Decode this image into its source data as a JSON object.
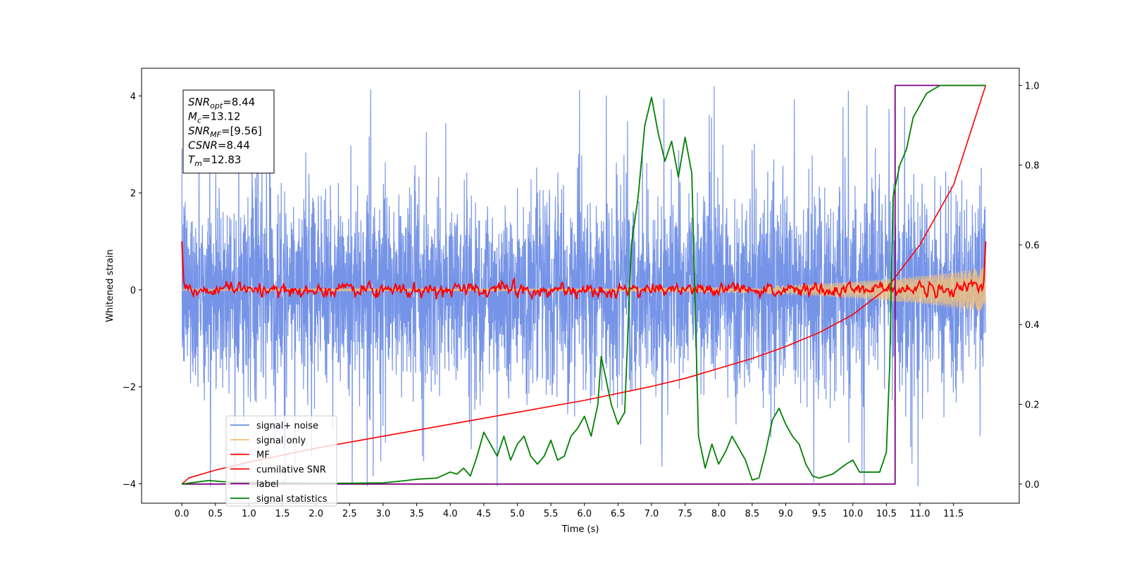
{
  "chart_data": {
    "type": "line",
    "xlabel": "Time (s)",
    "ylabel_left": "Whitened strain",
    "ylabel_right": "",
    "xlim": [
      -0.6,
      12.48
    ],
    "ylim_left": [
      -4.4,
      4.57
    ],
    "ylim_right": [
      -0.048,
      1.043
    ],
    "x_ticks": [
      "0.0",
      "0.5",
      "1.0",
      "1.5",
      "2.0",
      "2.5",
      "3.0",
      "3.5",
      "4.0",
      "4.5",
      "5.0",
      "5.5",
      "6.0",
      "6.5",
      "7.0",
      "7.5",
      "8.0",
      "8.5",
      "9.0",
      "9.5",
      "10.0",
      "10.5",
      "11.0",
      "11.5"
    ],
    "y_ticks_left": [
      -4,
      -2,
      0,
      2,
      4
    ],
    "y_ticks_right": [
      0.0,
      0.2,
      0.4,
      0.6,
      0.8,
      1.0
    ],
    "grid": false,
    "legend_placement": "lower-left",
    "annotation": {
      "lines": [
        {
          "main": "SNR",
          "sub": "opt",
          "rest": "=8.44"
        },
        {
          "main": "M",
          "sub": "c",
          "rest": "=13.12"
        },
        {
          "main": "SNR",
          "sub": "MF",
          "rest": "=[9.56]"
        },
        {
          "main": "CSNR",
          "sub": "",
          "rest": "=8.44"
        },
        {
          "main": "T",
          "sub": "m",
          "rest": "=12.83"
        }
      ]
    },
    "series": [
      {
        "name": "signal+ noise",
        "axis": "left",
        "color": "#6f8ee6",
        "description": "noisy whitened strain, roughly between -3 and 3 with spikes to about 4.2 and -4.0",
        "t_range": [
          0,
          11.98
        ]
      },
      {
        "name": "signal only",
        "axis": "left",
        "color": "#f5c27a",
        "description": "chirp growing to about ±0.45 at the end",
        "t_range": [
          0,
          11.98
        ]
      },
      {
        "name": "MF",
        "axis": "left",
        "color": "#ff0000",
        "description": "matched filter output, near 0, starts and ends at 1.0",
        "t_range": [
          0,
          11.98
        ]
      },
      {
        "name": "cumilative SNR",
        "axis": "right",
        "color": "#ff0000",
        "x": [
          0,
          0.1,
          0.5,
          1,
          2,
          3,
          4,
          5,
          6,
          7,
          7.5,
          8,
          8.5,
          9,
          9.5,
          10,
          10.5,
          11,
          11.5,
          11.98
        ],
        "y": [
          0.0,
          0.015,
          0.035,
          0.055,
          0.09,
          0.12,
          0.15,
          0.18,
          0.21,
          0.245,
          0.265,
          0.29,
          0.315,
          0.345,
          0.38,
          0.425,
          0.49,
          0.6,
          0.75,
          1.0
        ]
      },
      {
        "name": "label",
        "axis": "right",
        "color": "#800080",
        "x": [
          0,
          10.63,
          10.63,
          11.98
        ],
        "y": [
          0,
          0,
          1,
          1
        ]
      },
      {
        "name": "signal statistics",
        "axis": "right",
        "color": "#008000",
        "x": [
          0,
          0.4,
          0.6,
          1,
          1.5,
          2,
          2.5,
          3,
          3.3,
          3.5,
          3.8,
          4,
          4.1,
          4.2,
          4.3,
          4.4,
          4.5,
          4.6,
          4.7,
          4.8,
          4.9,
          5,
          5.1,
          5.2,
          5.3,
          5.4,
          5.5,
          5.6,
          5.7,
          5.8,
          5.9,
          6,
          6.1,
          6.2,
          6.25,
          6.3,
          6.4,
          6.5,
          6.6,
          6.7,
          6.8,
          6.9,
          7,
          7.1,
          7.2,
          7.3,
          7.4,
          7.5,
          7.6,
          7.7,
          7.8,
          7.9,
          8,
          8.1,
          8.2,
          8.3,
          8.4,
          8.5,
          8.6,
          8.7,
          8.8,
          8.9,
          9,
          9.1,
          9.2,
          9.3,
          9.4,
          9.5,
          9.7,
          9.9,
          10,
          10.1,
          10.2,
          10.3,
          10.4,
          10.5,
          10.55,
          10.6,
          10.7,
          10.8,
          10.9,
          11,
          11.1,
          11.2,
          11.3,
          11.5,
          11.7,
          11.8,
          11.9,
          11.98
        ],
        "y": [
          0,
          0.009,
          0.006,
          0.004,
          0.003,
          0.002,
          0.002,
          0.003,
          0.008,
          0.012,
          0.015,
          0.03,
          0.025,
          0.04,
          0.02,
          0.07,
          0.13,
          0.1,
          0.07,
          0.12,
          0.06,
          0.1,
          0.12,
          0.07,
          0.05,
          0.07,
          0.11,
          0.06,
          0.07,
          0.12,
          0.14,
          0.17,
          0.12,
          0.2,
          0.32,
          0.28,
          0.2,
          0.15,
          0.18,
          0.6,
          0.72,
          0.9,
          0.97,
          0.88,
          0.81,
          0.86,
          0.77,
          0.87,
          0.78,
          0.12,
          0.04,
          0.1,
          0.05,
          0.08,
          0.12,
          0.09,
          0.06,
          0.01,
          0.015,
          0.08,
          0.16,
          0.19,
          0.15,
          0.12,
          0.1,
          0.05,
          0.02,
          0.015,
          0.025,
          0.05,
          0.06,
          0.03,
          0.03,
          0.03,
          0.03,
          0.08,
          0.3,
          0.72,
          0.8,
          0.84,
          0.92,
          0.95,
          0.98,
          0.99,
          1.0,
          1.0,
          1.0,
          1.0,
          1.0,
          1.0
        ]
      }
    ]
  }
}
